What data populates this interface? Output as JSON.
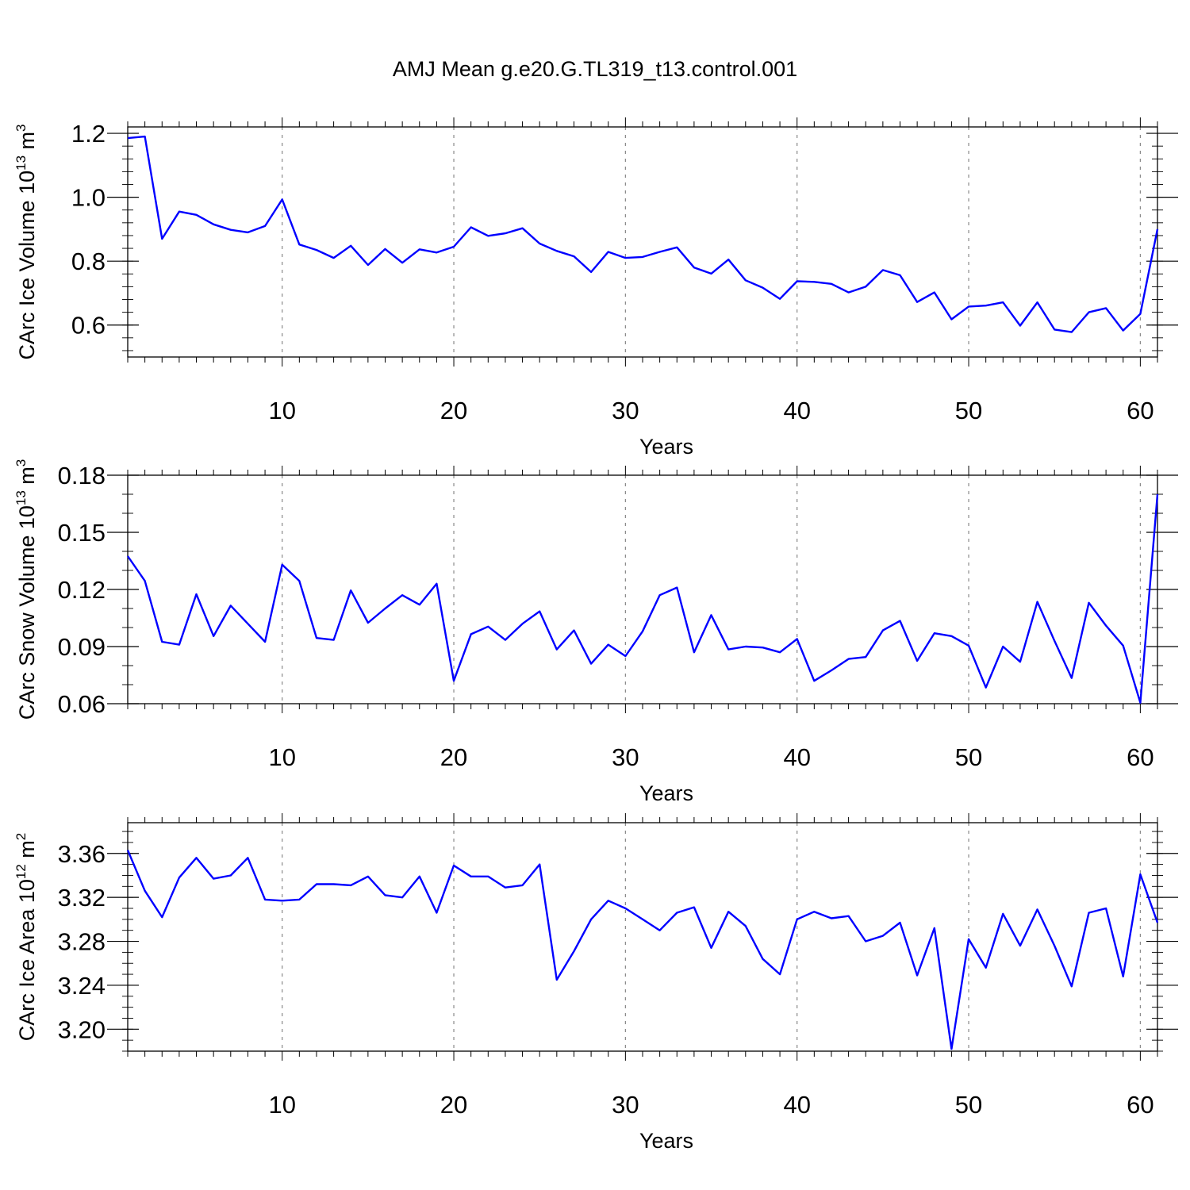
{
  "title": "AMJ Mean g.e20.G.TL319_t13.control.001",
  "line_color": "#0000ff",
  "chart_data": [
    {
      "type": "line",
      "title": "AMJ Mean g.e20.G.TL319_t13.control.001",
      "xlabel": "Years",
      "ylabel": "CArc Ice Volume 10",
      "ylabel_sup": "13",
      "ylabel_unit": " m",
      "ylabel_unit_sup": "3",
      "xlim": [
        1,
        61
      ],
      "ylim": [
        0.5,
        1.22
      ],
      "xticks": [
        10,
        20,
        30,
        40,
        50,
        60
      ],
      "xtick_labels": [
        "10",
        "20",
        "30",
        "40",
        "50",
        "60"
      ],
      "yticks": [
        0.6,
        0.8,
        1.0,
        1.2
      ],
      "ytick_labels": [
        "0.6",
        "0.8",
        "1.0",
        "1.2"
      ],
      "y_minor_step": 0.04,
      "vgrid": [
        10,
        20,
        30,
        40,
        50,
        60
      ],
      "x": [
        1,
        2,
        3,
        4,
        5,
        6,
        7,
        8,
        9,
        10,
        11,
        12,
        13,
        14,
        15,
        16,
        17,
        18,
        19,
        20,
        21,
        22,
        23,
        24,
        25,
        26,
        27,
        28,
        29,
        30,
        31,
        32,
        33,
        34,
        35,
        36,
        37,
        38,
        39,
        40,
        41,
        42,
        43,
        44,
        45,
        46,
        47,
        48,
        49,
        50,
        51,
        52,
        53,
        54,
        55,
        56,
        57,
        58,
        59,
        60,
        61
      ],
      "values": [
        1.185,
        1.19,
        0.87,
        0.955,
        0.945,
        0.915,
        0.898,
        0.89,
        0.91,
        0.993,
        0.852,
        0.835,
        0.81,
        0.848,
        0.788,
        0.838,
        0.795,
        0.837,
        0.827,
        0.845,
        0.906,
        0.879,
        0.887,
        0.903,
        0.855,
        0.832,
        0.815,
        0.766,
        0.829,
        0.81,
        0.813,
        0.829,
        0.843,
        0.78,
        0.761,
        0.805,
        0.74,
        0.717,
        0.682,
        0.737,
        0.735,
        0.729,
        0.702,
        0.72,
        0.772,
        0.756,
        0.672,
        0.702,
        0.618,
        0.658,
        0.661,
        0.671,
        0.598,
        0.671,
        0.586,
        0.578,
        0.64,
        0.653,
        0.583,
        0.635,
        0.9
      ]
    },
    {
      "type": "line",
      "xlabel": "Years",
      "ylabel": "CArc Snow Volume 10",
      "ylabel_sup": "13",
      "ylabel_unit": " m",
      "ylabel_unit_sup": "3",
      "xlim": [
        1,
        61
      ],
      "ylim": [
        0.06,
        0.18
      ],
      "xticks": [
        10,
        20,
        30,
        40,
        50,
        60
      ],
      "xtick_labels": [
        "10",
        "20",
        "30",
        "40",
        "50",
        "60"
      ],
      "yticks": [
        0.06,
        0.09,
        0.12,
        0.15,
        0.18
      ],
      "ytick_labels": [
        "0.06",
        "0.09",
        "0.12",
        "0.15",
        "0.18"
      ],
      "y_minor_step": 0.01,
      "vgrid": [
        10,
        20,
        30,
        40,
        50,
        60
      ],
      "x": [
        1,
        2,
        3,
        4,
        5,
        6,
        7,
        8,
        9,
        10,
        11,
        12,
        13,
        14,
        15,
        16,
        17,
        18,
        19,
        20,
        21,
        22,
        23,
        24,
        25,
        26,
        27,
        28,
        29,
        30,
        31,
        32,
        33,
        34,
        35,
        36,
        37,
        38,
        39,
        40,
        41,
        42,
        43,
        44,
        45,
        46,
        47,
        48,
        49,
        50,
        51,
        52,
        53,
        54,
        55,
        56,
        57,
        58,
        59,
        60,
        61
      ],
      "values": [
        0.1375,
        0.1245,
        0.0925,
        0.091,
        0.1175,
        0.0955,
        0.1115,
        0.102,
        0.0925,
        0.133,
        0.1245,
        0.0945,
        0.0935,
        0.1195,
        0.1025,
        0.11,
        0.117,
        0.112,
        0.123,
        0.072,
        0.0965,
        0.1005,
        0.0935,
        0.102,
        0.1085,
        0.0885,
        0.0985,
        0.081,
        0.091,
        0.085,
        0.098,
        0.117,
        0.121,
        0.087,
        0.1065,
        0.0885,
        0.09,
        0.0895,
        0.087,
        0.094,
        0.072,
        0.0775,
        0.0835,
        0.0845,
        0.0985,
        0.1035,
        0.0825,
        0.097,
        0.0955,
        0.0905,
        0.0685,
        0.09,
        0.082,
        0.1135,
        0.093,
        0.0735,
        0.113,
        0.101,
        0.0905,
        0.0605,
        0.17
      ]
    },
    {
      "type": "line",
      "xlabel": "Years",
      "ylabel": "CArc Ice Area 10",
      "ylabel_sup": "12",
      "ylabel_unit": " m",
      "ylabel_unit_sup": "2",
      "xlim": [
        1,
        61
      ],
      "ylim": [
        3.18,
        3.388
      ],
      "xticks": [
        10,
        20,
        30,
        40,
        50,
        60
      ],
      "xtick_labels": [
        "10",
        "20",
        "30",
        "40",
        "50",
        "60"
      ],
      "yticks": [
        3.2,
        3.24,
        3.28,
        3.32,
        3.36
      ],
      "ytick_labels": [
        "3.20",
        "3.24",
        "3.28",
        "3.32",
        "3.36"
      ],
      "y_minor_step": 0.01,
      "vgrid": [
        10,
        20,
        30,
        40,
        50,
        60
      ],
      "x": [
        1,
        2,
        3,
        4,
        5,
        6,
        7,
        8,
        9,
        10,
        11,
        12,
        13,
        14,
        15,
        16,
        17,
        18,
        19,
        20,
        21,
        22,
        23,
        24,
        25,
        26,
        27,
        28,
        29,
        30,
        31,
        32,
        33,
        34,
        35,
        36,
        37,
        38,
        39,
        40,
        41,
        42,
        43,
        44,
        45,
        46,
        47,
        48,
        49,
        50,
        51,
        52,
        53,
        54,
        55,
        56,
        57,
        58,
        59,
        60,
        61
      ],
      "values": [
        3.363,
        3.326,
        3.302,
        3.338,
        3.356,
        3.337,
        3.34,
        3.356,
        3.318,
        3.317,
        3.318,
        3.332,
        3.332,
        3.331,
        3.339,
        3.322,
        3.32,
        3.339,
        3.306,
        3.349,
        3.339,
        3.339,
        3.329,
        3.331,
        3.35,
        3.245,
        3.271,
        3.3,
        3.317,
        3.31,
        3.3,
        3.29,
        3.306,
        3.311,
        3.274,
        3.307,
        3.294,
        3.264,
        3.25,
        3.3,
        3.307,
        3.301,
        3.303,
        3.28,
        3.285,
        3.297,
        3.249,
        3.292,
        3.182,
        3.282,
        3.256,
        3.305,
        3.276,
        3.309,
        3.276,
        3.239,
        3.306,
        3.31,
        3.248,
        3.341,
        3.297
      ]
    }
  ]
}
